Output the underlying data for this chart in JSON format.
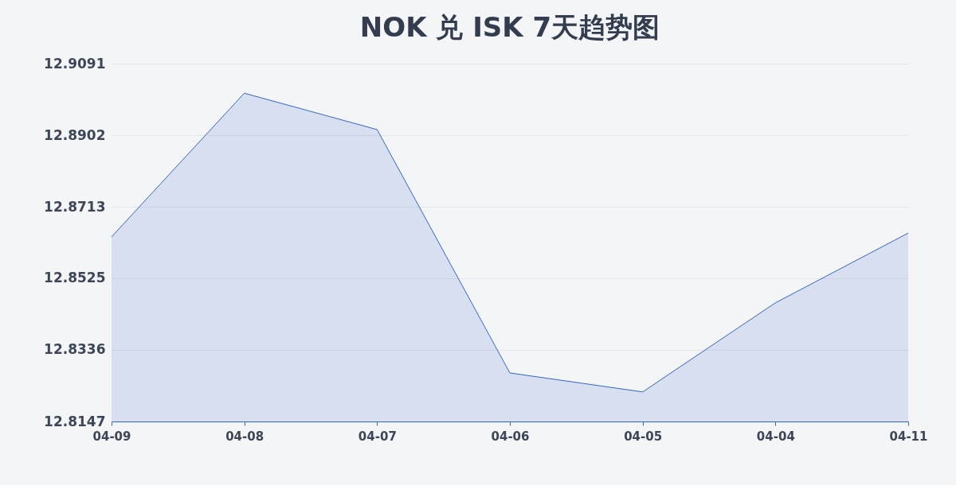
{
  "chart_data": {
    "type": "area",
    "title": "NOK 兑 ISK 7天趋势图",
    "categories": [
      "04-09",
      "04-08",
      "04-07",
      "04-06",
      "04-05",
      "04-04",
      "04-11"
    ],
    "series": [
      {
        "color": "#3366cc",
        "values": [
          12.8634,
          12.9013,
          12.8917,
          12.8275,
          12.8225,
          12.846,
          12.8644
        ]
      }
    ],
    "ylim": [
      12.8147,
      12.9091
    ],
    "yticks": [
      12.8147,
      12.8336,
      12.8525,
      12.8713,
      12.8902,
      12.9091
    ],
    "grid": "y",
    "marker": "none",
    "line_style": "solid"
  }
}
